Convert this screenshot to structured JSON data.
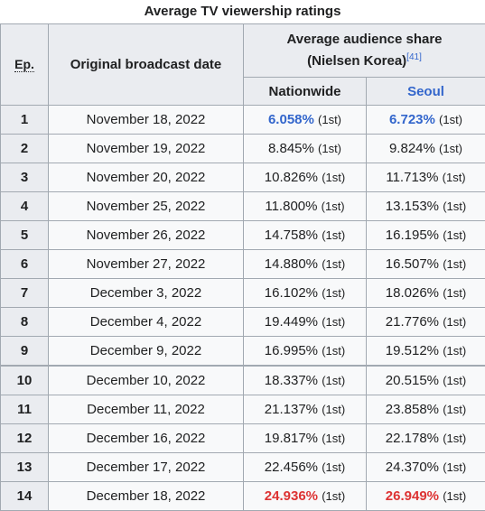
{
  "caption": "Average TV viewership ratings",
  "headers": {
    "ep": "Ep.",
    "date": "Original broadcast date",
    "share_line1": "Average audience share",
    "share_line2": "(Nielsen Korea)",
    "ref": "[41]",
    "nationwide": "Nationwide",
    "seoul": "Seoul"
  },
  "rank_label": "(1st)",
  "colors": {
    "lowest": "#3366cc",
    "highest": "#dd3333",
    "border": "#a2a9b1",
    "header_bg": "#eaecf0",
    "cell_bg": "#f8f9fa"
  },
  "rows": [
    {
      "ep": "1",
      "date": "November 18, 2022",
      "nationwide": "6.058%",
      "seoul": "6.723%",
      "mark": "low"
    },
    {
      "ep": "2",
      "date": "November 19, 2022",
      "nationwide": "8.845%",
      "seoul": "9.824%",
      "mark": ""
    },
    {
      "ep": "3",
      "date": "November 20, 2022",
      "nationwide": "10.826%",
      "seoul": "11.713%",
      "mark": ""
    },
    {
      "ep": "4",
      "date": "November 25, 2022",
      "nationwide": "11.800%",
      "seoul": "13.153%",
      "mark": ""
    },
    {
      "ep": "5",
      "date": "November 26, 2022",
      "nationwide": "14.758%",
      "seoul": "16.195%",
      "mark": ""
    },
    {
      "ep": "6",
      "date": "November 27, 2022",
      "nationwide": "14.880%",
      "seoul": "16.507%",
      "mark": ""
    },
    {
      "ep": "7",
      "date": "December 3, 2022",
      "nationwide": "16.102%",
      "seoul": "18.026%",
      "mark": ""
    },
    {
      "ep": "8",
      "date": "December 4, 2022",
      "nationwide": "19.449%",
      "seoul": "21.776%",
      "mark": ""
    },
    {
      "ep": "9",
      "date": "December 9, 2022",
      "nationwide": "16.995%",
      "seoul": "19.512%",
      "mark": ""
    },
    {
      "ep": "10",
      "date": "December 10, 2022",
      "nationwide": "18.337%",
      "seoul": "20.515%",
      "mark": ""
    },
    {
      "ep": "11",
      "date": "December 11, 2022",
      "nationwide": "21.137%",
      "seoul": "23.858%",
      "mark": ""
    },
    {
      "ep": "12",
      "date": "December 16, 2022",
      "nationwide": "19.817%",
      "seoul": "22.178%",
      "mark": ""
    },
    {
      "ep": "13",
      "date": "December 17, 2022",
      "nationwide": "22.456%",
      "seoul": "24.370%",
      "mark": ""
    },
    {
      "ep": "14",
      "date": "December 18, 2022",
      "nationwide": "24.936%",
      "seoul": "26.949%",
      "mark": "high"
    }
  ]
}
